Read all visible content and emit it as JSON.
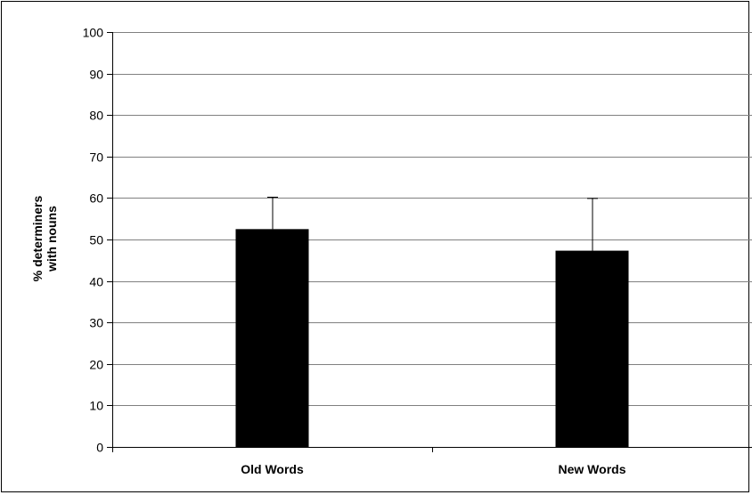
{
  "chart_data": {
    "type": "bar",
    "title": "",
    "xlabel": "",
    "ylabel_lines": [
      "% determiners",
      "with nouns"
    ],
    "categories": [
      "Old Words",
      "New Words"
    ],
    "series": [
      {
        "values": [
          52.5,
          47.3
        ],
        "error_plus": [
          7.8,
          12.7
        ]
      }
    ],
    "ylim": [
      0,
      100
    ],
    "yticks": [
      0,
      10,
      20,
      30,
      40,
      50,
      60,
      70,
      80,
      90,
      100
    ],
    "grid": true,
    "legend": "none",
    "colors": {
      "bar": "#000000",
      "grid": "#808080",
      "axis": "#000000"
    }
  }
}
